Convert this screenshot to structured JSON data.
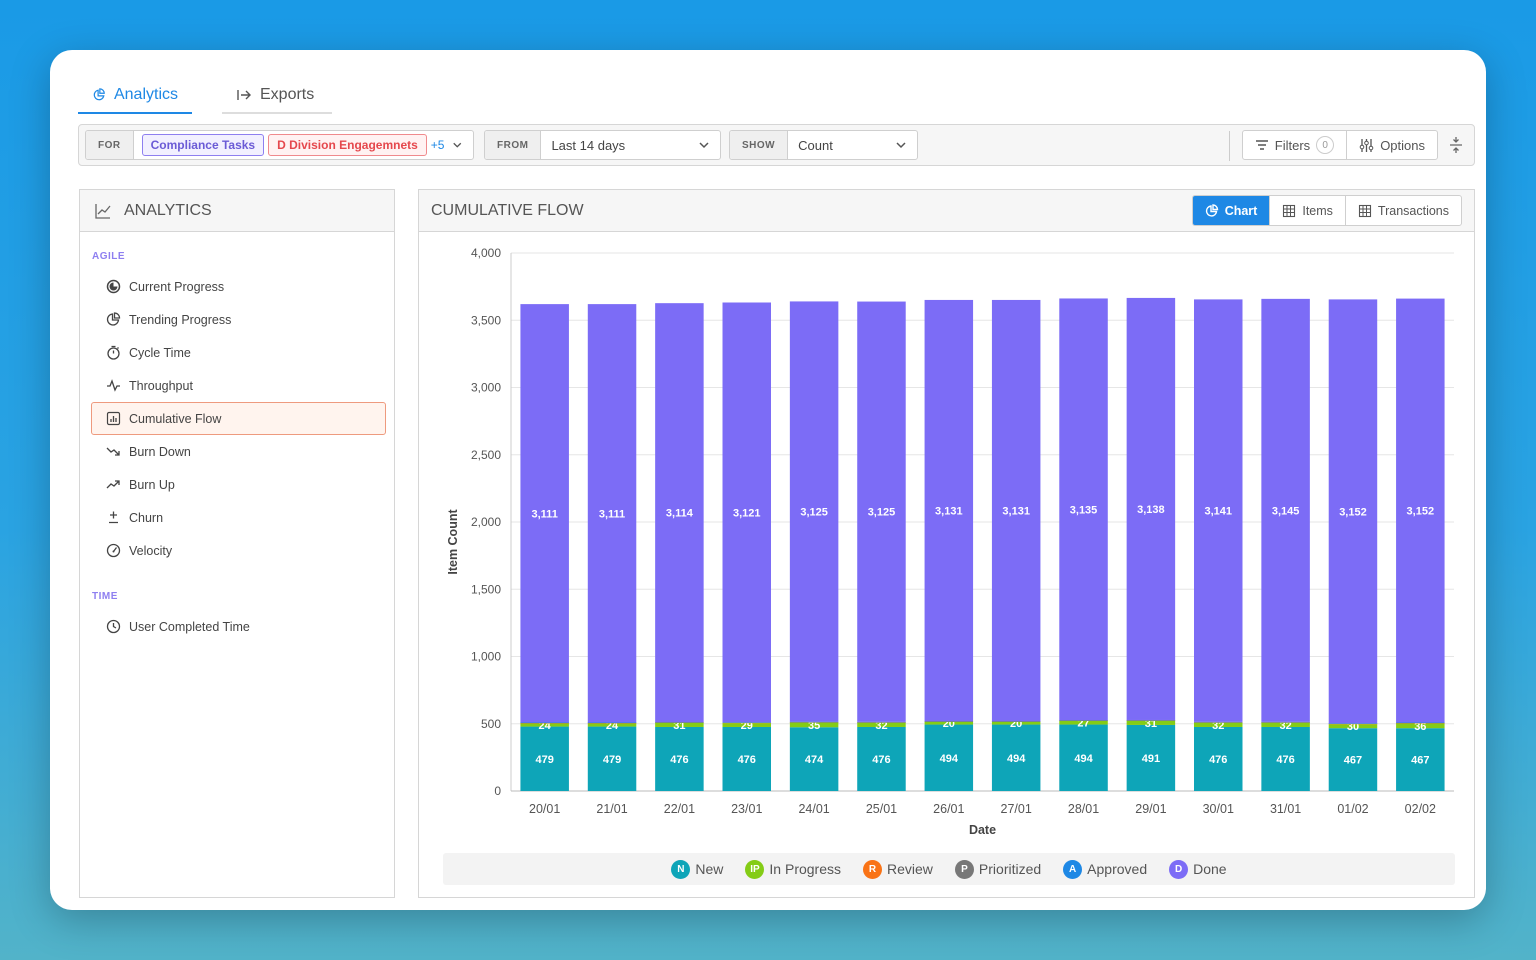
{
  "tabs": [
    {
      "label": "Analytics",
      "icon": "chart-pie-icon"
    },
    {
      "label": "Exports",
      "icon": "export-arrow-icon"
    }
  ],
  "filters": {
    "for_label": "FOR",
    "for_chips": [
      "Compliance Tasks",
      "D Division Engagemnets"
    ],
    "for_more": "+5",
    "from_label": "FROM",
    "from_value": "Last 14 days",
    "show_label": "SHOW",
    "show_value": "Count",
    "filters_label": "Filters",
    "filters_count": "0",
    "options_label": "Options"
  },
  "sidebar": {
    "title": "ANALYTICS",
    "sections": [
      {
        "label": "AGILE",
        "items": [
          "Current Progress",
          "Trending Progress",
          "Cycle Time",
          "Throughput",
          "Cumulative Flow",
          "Burn Down",
          "Burn Up",
          "Churn",
          "Velocity"
        ]
      },
      {
        "label": "TIME",
        "items": [
          "User Completed Time"
        ]
      }
    ],
    "selected": "Cumulative Flow"
  },
  "main": {
    "title": "CUMULATIVE FLOW",
    "views": [
      "Chart",
      "Items",
      "Transactions"
    ],
    "active_view": "Chart"
  },
  "chart_data": {
    "type": "bar",
    "stacked": true,
    "xlabel": "Date",
    "ylabel": "Item Count",
    "ylim": [
      0,
      4000
    ],
    "yticks": [
      0,
      500,
      1000,
      1500,
      2000,
      2500,
      3000,
      3500,
      4000
    ],
    "categories": [
      "20/01",
      "21/01",
      "22/01",
      "23/01",
      "24/01",
      "25/01",
      "26/01",
      "27/01",
      "28/01",
      "29/01",
      "30/01",
      "31/01",
      "01/02",
      "02/02"
    ],
    "series": [
      {
        "name": "New",
        "abbr": "N",
        "color": "#0ea5b8",
        "values": [
          479,
          479,
          476,
          476,
          474,
          476,
          494,
          494,
          494,
          491,
          476,
          476,
          467,
          467
        ]
      },
      {
        "name": "In Progress",
        "abbr": "IP",
        "color": "#84cc16",
        "values": [
          24,
          24,
          31,
          29,
          35,
          32,
          20,
          20,
          27,
          31,
          32,
          32,
          30,
          36
        ]
      },
      {
        "name": "Review",
        "abbr": "R",
        "color": "#f97316",
        "values": [
          3,
          3,
          3,
          3,
          3,
          3,
          3,
          3,
          3,
          3,
          3,
          3,
          3,
          3
        ]
      },
      {
        "name": "Prioritized",
        "abbr": "P",
        "color": "#777777",
        "values": [
          2,
          2,
          2,
          2,
          2,
          2,
          2,
          2,
          2,
          2,
          2,
          2,
          2,
          2
        ]
      },
      {
        "name": "Approved",
        "abbr": "A",
        "color": "#1e88e5",
        "values": [
          1,
          1,
          1,
          1,
          1,
          1,
          1,
          1,
          1,
          1,
          1,
          1,
          1,
          1
        ]
      },
      {
        "name": "Done",
        "abbr": "D",
        "color": "#7c6cf6",
        "values": [
          3111,
          3111,
          3114,
          3121,
          3125,
          3125,
          3131,
          3131,
          3135,
          3138,
          3141,
          3145,
          3152,
          3152
        ]
      }
    ],
    "labeled_series": [
      "New",
      "In Progress",
      "Done"
    ],
    "legend_position": "bottom",
    "grid": true
  }
}
